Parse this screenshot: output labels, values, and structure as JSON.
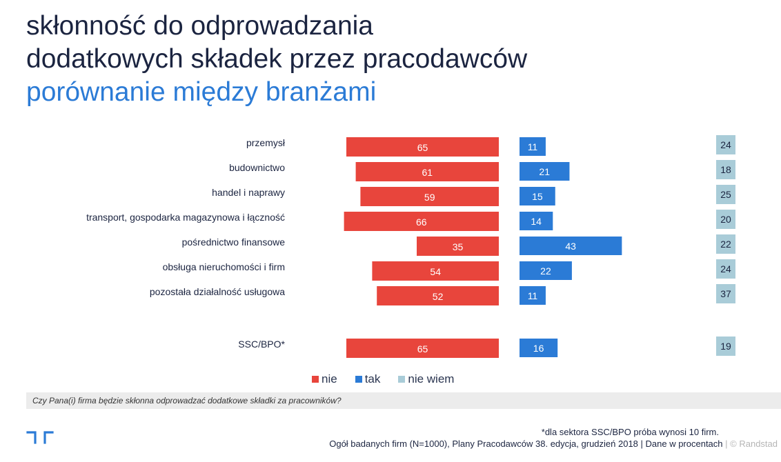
{
  "header": {
    "title_line1": "skłonność do odprowadzania",
    "title_line2": "dodatkowych składek przez pracodawców",
    "subtitle": "porównanie między branżami"
  },
  "colors": {
    "nie": "#e8453c",
    "tak": "#2b7bd6",
    "nie_wiem": "#a9ccd8",
    "title": "#1b2440",
    "subtitle": "#2b7bd6"
  },
  "chart_data": {
    "type": "bar",
    "categories": [
      "przemysł",
      "budownictwo",
      "handel i naprawy",
      "transport, gospodarka magazynowa i łączność",
      "pośrednictwo finansowe",
      "obsługa nieruchomości i firm",
      "pozostała działalność usługowa",
      "SSC/BPO*"
    ],
    "series": [
      {
        "name": "nie",
        "values": [
          65,
          61,
          59,
          66,
          35,
          54,
          52,
          65
        ]
      },
      {
        "name": "tak",
        "values": [
          11,
          21,
          15,
          14,
          43,
          22,
          11,
          16
        ]
      },
      {
        "name": "nie wiem",
        "values": [
          24,
          18,
          25,
          20,
          22,
          24,
          37,
          19
        ]
      }
    ],
    "legend_position": "bottom-center",
    "grid": false
  },
  "legend": {
    "nie": "nie",
    "tak": "tak",
    "nie_wiem": "nie wiem"
  },
  "question": "Czy Pana(i) firma będzie skłonna odprowadzać dodatkowe składki za pracowników?",
  "footnote": "*dla sektora SSC/BPO próba wynosi 10 firm.",
  "source": {
    "text": "Ogół badanych firm (N=1000), Plany Pracodawców 38. edycja, grudzień 2018 | Dane w procentach",
    "separator": "|",
    "copyright": "© Randstad"
  },
  "logo": "randstad-logo-icon"
}
